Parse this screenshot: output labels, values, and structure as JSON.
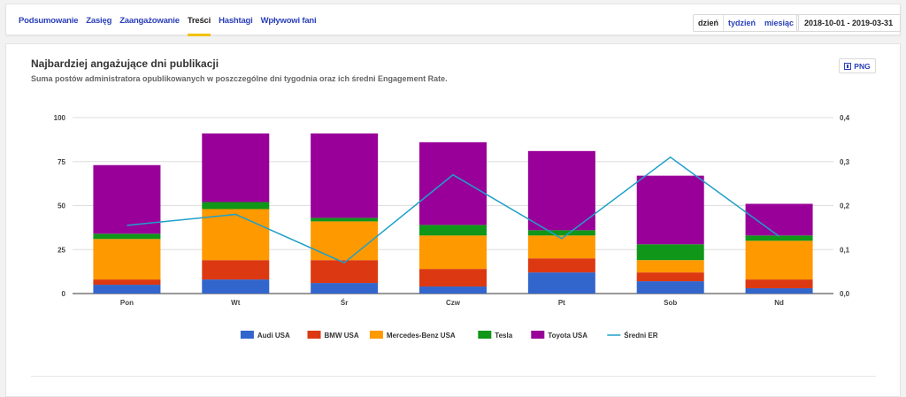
{
  "nav": {
    "tabs": [
      {
        "label": "Podsumowanie",
        "active": false
      },
      {
        "label": "Zasięg",
        "active": false
      },
      {
        "label": "Zaangażowanie",
        "active": false
      },
      {
        "label": "Treści",
        "active": true
      },
      {
        "label": "Hashtagi",
        "active": false
      },
      {
        "label": "Wpływowi fani",
        "active": false
      }
    ],
    "period": [
      "dzień",
      "tydzień",
      "miesiąc"
    ],
    "selected_period": "dzień",
    "date_range": "2018-10-01 - 2019-03-31"
  },
  "card": {
    "title": "Najbardziej angażujące dni publikacji",
    "subtitle": "Suma postów administratora opublikowanych w poszczególne dni tygodnia oraz ich średni Engagement Rate.",
    "png_label": "PNG",
    "png_icon": "download-icon"
  },
  "chart_data": {
    "type": "bar",
    "stacked": true,
    "categories": [
      "Pon",
      "Wt",
      "Śr",
      "Czw",
      "Pt",
      "Sob",
      "Nd"
    ],
    "series": [
      {
        "name": "Audi USA",
        "color": "#3366cc",
        "values": [
          5,
          8,
          6,
          4,
          12,
          7,
          3
        ]
      },
      {
        "name": "BMW USA",
        "color": "#dc3912",
        "values": [
          3,
          11,
          13,
          10,
          8,
          5,
          5
        ]
      },
      {
        "name": "Mercedes-Benz USA",
        "color": "#ff9900",
        "values": [
          23,
          29,
          22,
          19,
          13,
          7,
          22
        ]
      },
      {
        "name": "Tesla",
        "color": "#109618",
        "values": [
          3,
          4,
          2,
          6,
          3,
          9,
          3
        ]
      },
      {
        "name": "Toyota USA",
        "color": "#990099",
        "values": [
          39,
          39,
          48,
          47,
          45,
          39,
          18
        ]
      }
    ],
    "line_series": {
      "name": "Średni ER",
      "color": "#1fa0c8",
      "axis": "right",
      "values": [
        0.155,
        0.18,
        0.07,
        0.27,
        0.125,
        0.31,
        0.13
      ]
    },
    "ylim": [
      0,
      100
    ],
    "yticks": [
      0,
      25,
      50,
      75,
      100
    ],
    "y2lim": [
      0,
      0.4
    ],
    "y2ticks": [
      "0,0",
      "0,1",
      "0,2",
      "0,3",
      "0,4"
    ],
    "grid": true,
    "legend": "bottom"
  }
}
